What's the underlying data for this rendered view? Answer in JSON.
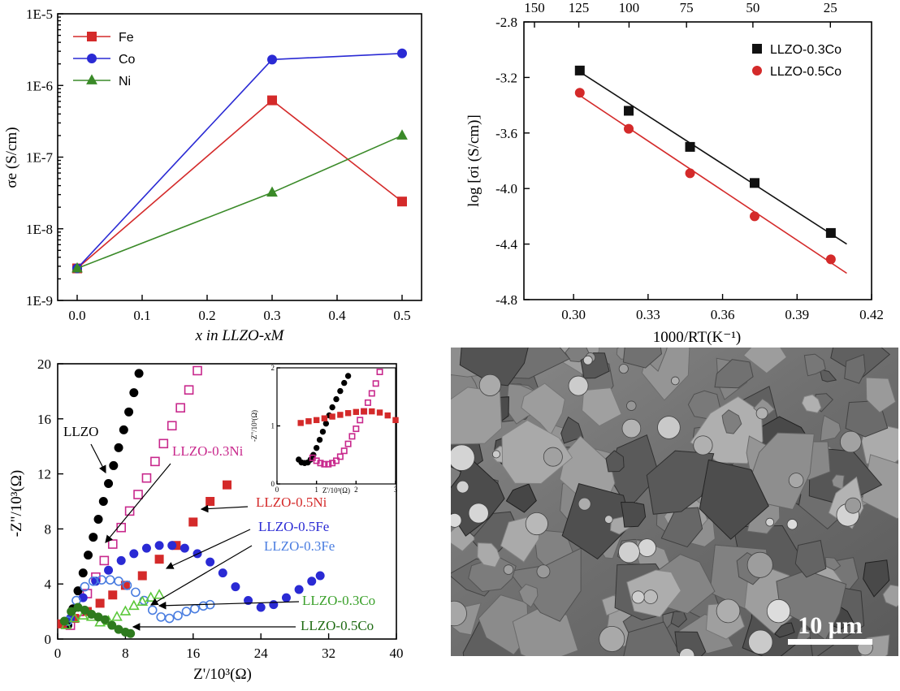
{
  "chart_data": [
    {
      "id": "a",
      "type": "line",
      "y_scale": "log",
      "xlabel": "x in LLZO-xM",
      "ylabel": "σe (S/cm)",
      "xlim": [
        -0.03,
        0.53
      ],
      "ylim": [
        1e-09,
        1e-05
      ],
      "x_ticks": [
        "0.0",
        "0.1",
        "0.2",
        "0.3",
        "0.4",
        "0.5"
      ],
      "y_ticks": [
        "1E-9",
        "1E-8",
        "1E-7",
        "1E-6",
        "1E-5"
      ],
      "legend_position": "top-left",
      "series": [
        {
          "name": "Fe",
          "color": "#d42a2a",
          "marker": "square",
          "x": [
            0,
            0.3,
            0.5
          ],
          "y": [
            2.8e-09,
            6.2e-07,
            2.4e-08
          ]
        },
        {
          "name": "Co",
          "color": "#2a2ad4",
          "marker": "circle",
          "x": [
            0,
            0.3,
            0.5
          ],
          "y": [
            2.8e-09,
            2.3e-06,
            2.8e-06
          ]
        },
        {
          "name": "Ni",
          "color": "#3a8a28",
          "marker": "triangle",
          "x": [
            0,
            0.3,
            0.5
          ],
          "y": [
            2.8e-09,
            3.2e-08,
            2e-07
          ]
        }
      ]
    },
    {
      "id": "b",
      "type": "scatter",
      "xlabel": "1000/RT(K⁻¹)",
      "ylabel": "log [σi (S/cm)]",
      "xlim": [
        0.28,
        0.42
      ],
      "ylim": [
        -4.8,
        -2.8
      ],
      "x_ticks": [
        "0.30",
        "0.33",
        "0.36",
        "0.39",
        "0.42"
      ],
      "y_ticks": [
        "-2.8",
        "-3.2",
        "-3.6",
        "-4.0",
        "-4.4",
        "-4.8"
      ],
      "top_axis_label_values": [
        150,
        125,
        100,
        75,
        50,
        25
      ],
      "top_ticks": [
        "150",
        "125",
        "100",
        "75",
        "50",
        "25"
      ],
      "legend_position": "top-right",
      "series": [
        {
          "name": "LLZO-0.3Co",
          "color": "#111111",
          "marker": "square",
          "x": [
            0.3025,
            0.3222,
            0.3469,
            0.3729,
            0.4036
          ],
          "y": [
            -3.15,
            -3.44,
            -3.7,
            -3.96,
            -4.32
          ],
          "fit": {
            "x": [
              0.3025,
              0.41
            ],
            "y": [
              -3.16,
              -4.4
            ]
          }
        },
        {
          "name": "LLZO-0.5Co",
          "color": "#d42a2a",
          "marker": "circle",
          "x": [
            0.3025,
            0.3222,
            0.3469,
            0.3729,
            0.4036
          ],
          "y": [
            -3.31,
            -3.57,
            -3.89,
            -4.2,
            -4.51
          ],
          "fit": {
            "x": [
              0.3025,
              0.41
            ],
            "y": [
              -3.33,
              -4.61
            ]
          }
        }
      ]
    },
    {
      "id": "c",
      "type": "scatter",
      "xlabel": "Z'/10³(Ω)",
      "ylabel": "-Z\"/10³(Ω)",
      "xlim": [
        0,
        40
      ],
      "ylim": [
        0,
        20
      ],
      "x_ticks": [
        "0",
        "8",
        "16",
        "24",
        "32",
        "40"
      ],
      "y_ticks": [
        "0",
        "4",
        "8",
        "12",
        "16",
        "20"
      ],
      "series": [
        {
          "name": "LLZO",
          "color": "#000000",
          "marker": "filled-circle",
          "x": [
            1.2,
            1.8,
            2.4,
            3.0,
            3.6,
            4.2,
            4.8,
            5.4,
            6.0,
            6.6,
            7.2,
            7.8,
            8.4,
            9.0,
            9.6
          ],
          "y": [
            1.0,
            2.2,
            3.5,
            4.8,
            6.1,
            7.4,
            8.7,
            10.0,
            11.3,
            12.6,
            13.9,
            15.2,
            16.5,
            17.9,
            19.3
          ]
        },
        {
          "name": "LLZO-0.3Ni",
          "color": "#c8288c",
          "marker": "open-square",
          "x": [
            1.5,
            2.5,
            3.5,
            4.5,
            5.5,
            6.5,
            7.5,
            8.5,
            9.5,
            10.5,
            11.5,
            12.5,
            13.5,
            14.5,
            15.5,
            16.5
          ],
          "y": [
            1.0,
            2.0,
            3.3,
            4.5,
            5.7,
            6.9,
            8.1,
            9.3,
            10.5,
            11.7,
            12.9,
            14.2,
            15.5,
            16.8,
            18.1,
            19.5
          ]
        },
        {
          "name": "LLZO-0.5Ni",
          "color": "#d42a2a",
          "marker": "filled-square",
          "x": [
            0.5,
            2.0,
            3.5,
            5.0,
            6.5,
            8.0,
            10.0,
            12.0,
            14.0,
            16.0,
            18.0,
            20.0
          ],
          "y": [
            1.1,
            1.5,
            2.0,
            2.6,
            3.2,
            3.9,
            4.6,
            5.8,
            6.8,
            8.5,
            10.0,
            11.2
          ]
        },
        {
          "name": "LLZO-0.5Fe",
          "color": "#2a2ad4",
          "marker": "filled-circle",
          "x": [
            1.5,
            3.0,
            4.5,
            6.0,
            7.5,
            9.0,
            10.5,
            12.0,
            13.5,
            15.0,
            16.5,
            18.0,
            19.5,
            21.0,
            22.5,
            24.0,
            25.5,
            27.0,
            28.5,
            30.0,
            31.0
          ],
          "y": [
            1.5,
            3.0,
            4.2,
            5.0,
            5.7,
            6.2,
            6.6,
            6.8,
            6.8,
            6.6,
            6.2,
            5.6,
            4.8,
            3.8,
            2.8,
            2.3,
            2.5,
            3.0,
            3.6,
            4.2,
            4.6
          ]
        },
        {
          "name": "LLZO-0.3Fe",
          "color": "#4a7de0",
          "marker": "open-circle",
          "x": [
            1.2,
            2.2,
            3.2,
            4.2,
            5.2,
            6.2,
            7.2,
            8.2,
            9.2,
            10.2,
            11.2,
            12.2,
            13.2,
            14.2,
            15.2,
            16.2,
            17.2,
            18.0
          ],
          "y": [
            1.3,
            2.8,
            3.8,
            4.2,
            4.3,
            4.3,
            4.2,
            3.9,
            3.4,
            2.8,
            2.1,
            1.6,
            1.5,
            1.7,
            2.0,
            2.2,
            2.4,
            2.5
          ]
        },
        {
          "name": "LLZO-0.3Co",
          "color": "#5bc83a",
          "marker": "open-triangle",
          "x": [
            1.0,
            2.0,
            3.0,
            4.0,
            5.0,
            6.0,
            7.0,
            8.0,
            9.0,
            10.0,
            11.0,
            12.0
          ],
          "y": [
            1.0,
            1.5,
            1.7,
            1.6,
            1.2,
            1.3,
            1.6,
            2.0,
            2.4,
            2.7,
            3.0,
            3.2
          ]
        },
        {
          "name": "LLZO-0.5Co",
          "color": "#2e7a1e",
          "marker": "filled-circle",
          "x": [
            0.8,
            1.6,
            2.4,
            3.2,
            4.0,
            4.8,
            5.6,
            6.4,
            7.2,
            8.0,
            8.6
          ],
          "y": [
            1.3,
            2.0,
            2.3,
            2.1,
            1.8,
            1.6,
            1.4,
            1.0,
            0.7,
            0.5,
            0.4
          ]
        }
      ],
      "annotations": [
        {
          "text": "LLZO",
          "color": "#000000"
        },
        {
          "text": "LLZO-0.3Ni",
          "color": "#c8288c"
        },
        {
          "text": "LLZO-0.5Ni",
          "color": "#d42a2a"
        },
        {
          "text": "LLZO-0.5Fe",
          "color": "#2a2ad4"
        },
        {
          "text": "LLZO-0.3Fe",
          "color": "#4a7de0"
        },
        {
          "text": "LLZO-0.3Co",
          "color": "#3aa02a"
        },
        {
          "text": "LLZO-0.5Co",
          "color": "#1e6a12"
        }
      ],
      "inset": {
        "xlabel": "Z'/10³(Ω)",
        "ylabel": "-Z\"/10³(Ω)",
        "xlim": [
          0,
          3
        ],
        "ylim": [
          0,
          2
        ],
        "x_ticks": [
          "0",
          "1",
          "2",
          "3"
        ],
        "y_ticks": [
          "0",
          "1",
          "2"
        ],
        "series": [
          {
            "name": "LLZO",
            "color": "#000000",
            "marker": "filled-circle",
            "x": [
              0.55,
              0.62,
              0.7,
              0.78,
              0.85,
              0.92,
              1.0,
              1.08,
              1.16,
              1.24,
              1.32,
              1.4,
              1.5,
              1.6,
              1.7,
              1.8
            ],
            "y": [
              0.42,
              0.37,
              0.36,
              0.37,
              0.42,
              0.5,
              0.62,
              0.76,
              0.9,
              1.04,
              1.18,
              1.32,
              1.46,
              1.6,
              1.74,
              1.86
            ]
          },
          {
            "name": "LLZO-0.3Ni",
            "color": "#c8288c",
            "marker": "open-square",
            "x": [
              0.9,
              1.0,
              1.1,
              1.2,
              1.3,
              1.4,
              1.5,
              1.6,
              1.7,
              1.8,
              1.9,
              2.0,
              2.1,
              2.2,
              2.3,
              2.4,
              2.5,
              2.6
            ],
            "y": [
              0.45,
              0.4,
              0.36,
              0.34,
              0.34,
              0.36,
              0.4,
              0.47,
              0.57,
              0.69,
              0.82,
              0.95,
              1.1,
              1.25,
              1.4,
              1.56,
              1.73,
              1.93
            ]
          },
          {
            "name": "LLZO-0.5Ni",
            "color": "#d42a2a",
            "marker": "filled-square",
            "x": [
              0.6,
              0.8,
              1.0,
              1.2,
              1.4,
              1.6,
              1.8,
              2.0,
              2.2,
              2.4,
              2.6,
              2.8,
              3.0
            ],
            "y": [
              1.05,
              1.08,
              1.1,
              1.13,
              1.16,
              1.19,
              1.22,
              1.24,
              1.25,
              1.25,
              1.23,
              1.18,
              1.1
            ]
          }
        ]
      }
    }
  ],
  "micrograph": {
    "scale_bar_label": "10 μm"
  }
}
